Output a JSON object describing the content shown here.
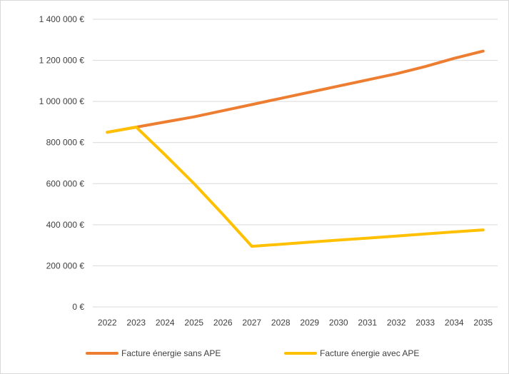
{
  "chart_data": {
    "type": "line",
    "title": "",
    "xlabel": "",
    "ylabel": "",
    "x": [
      "2022",
      "2023",
      "2024",
      "2025",
      "2026",
      "2027",
      "2028",
      "2029",
      "2030",
      "2031",
      "2032",
      "2033",
      "2034",
      "2035"
    ],
    "ylim": [
      0,
      1400000
    ],
    "y_ticks": [
      0,
      200000,
      400000,
      600000,
      800000,
      1000000,
      1200000,
      1400000
    ],
    "y_tick_labels": [
      "0 €",
      "200 000 €",
      "400 000 €",
      "600 000 €",
      "800 000 €",
      "1 000 000 €",
      "1 200 000 €",
      "1 400 000 €"
    ],
    "grid": true,
    "legend_position": "bottom",
    "series": [
      {
        "name": "Facture énergie sans APE",
        "color": "#ED7D31",
        "values": [
          850000,
          875000,
          900000,
          925000,
          955000,
          985000,
          1015000,
          1045000,
          1075000,
          1105000,
          1135000,
          1170000,
          1210000,
          1245000
        ]
      },
      {
        "name": "Facture énergie avec APE",
        "color": "#FFC000",
        "values": [
          850000,
          875000,
          740000,
          600000,
          450000,
          295000,
          305000,
          315000,
          325000,
          335000,
          345000,
          355000,
          365000,
          375000
        ]
      }
    ]
  }
}
